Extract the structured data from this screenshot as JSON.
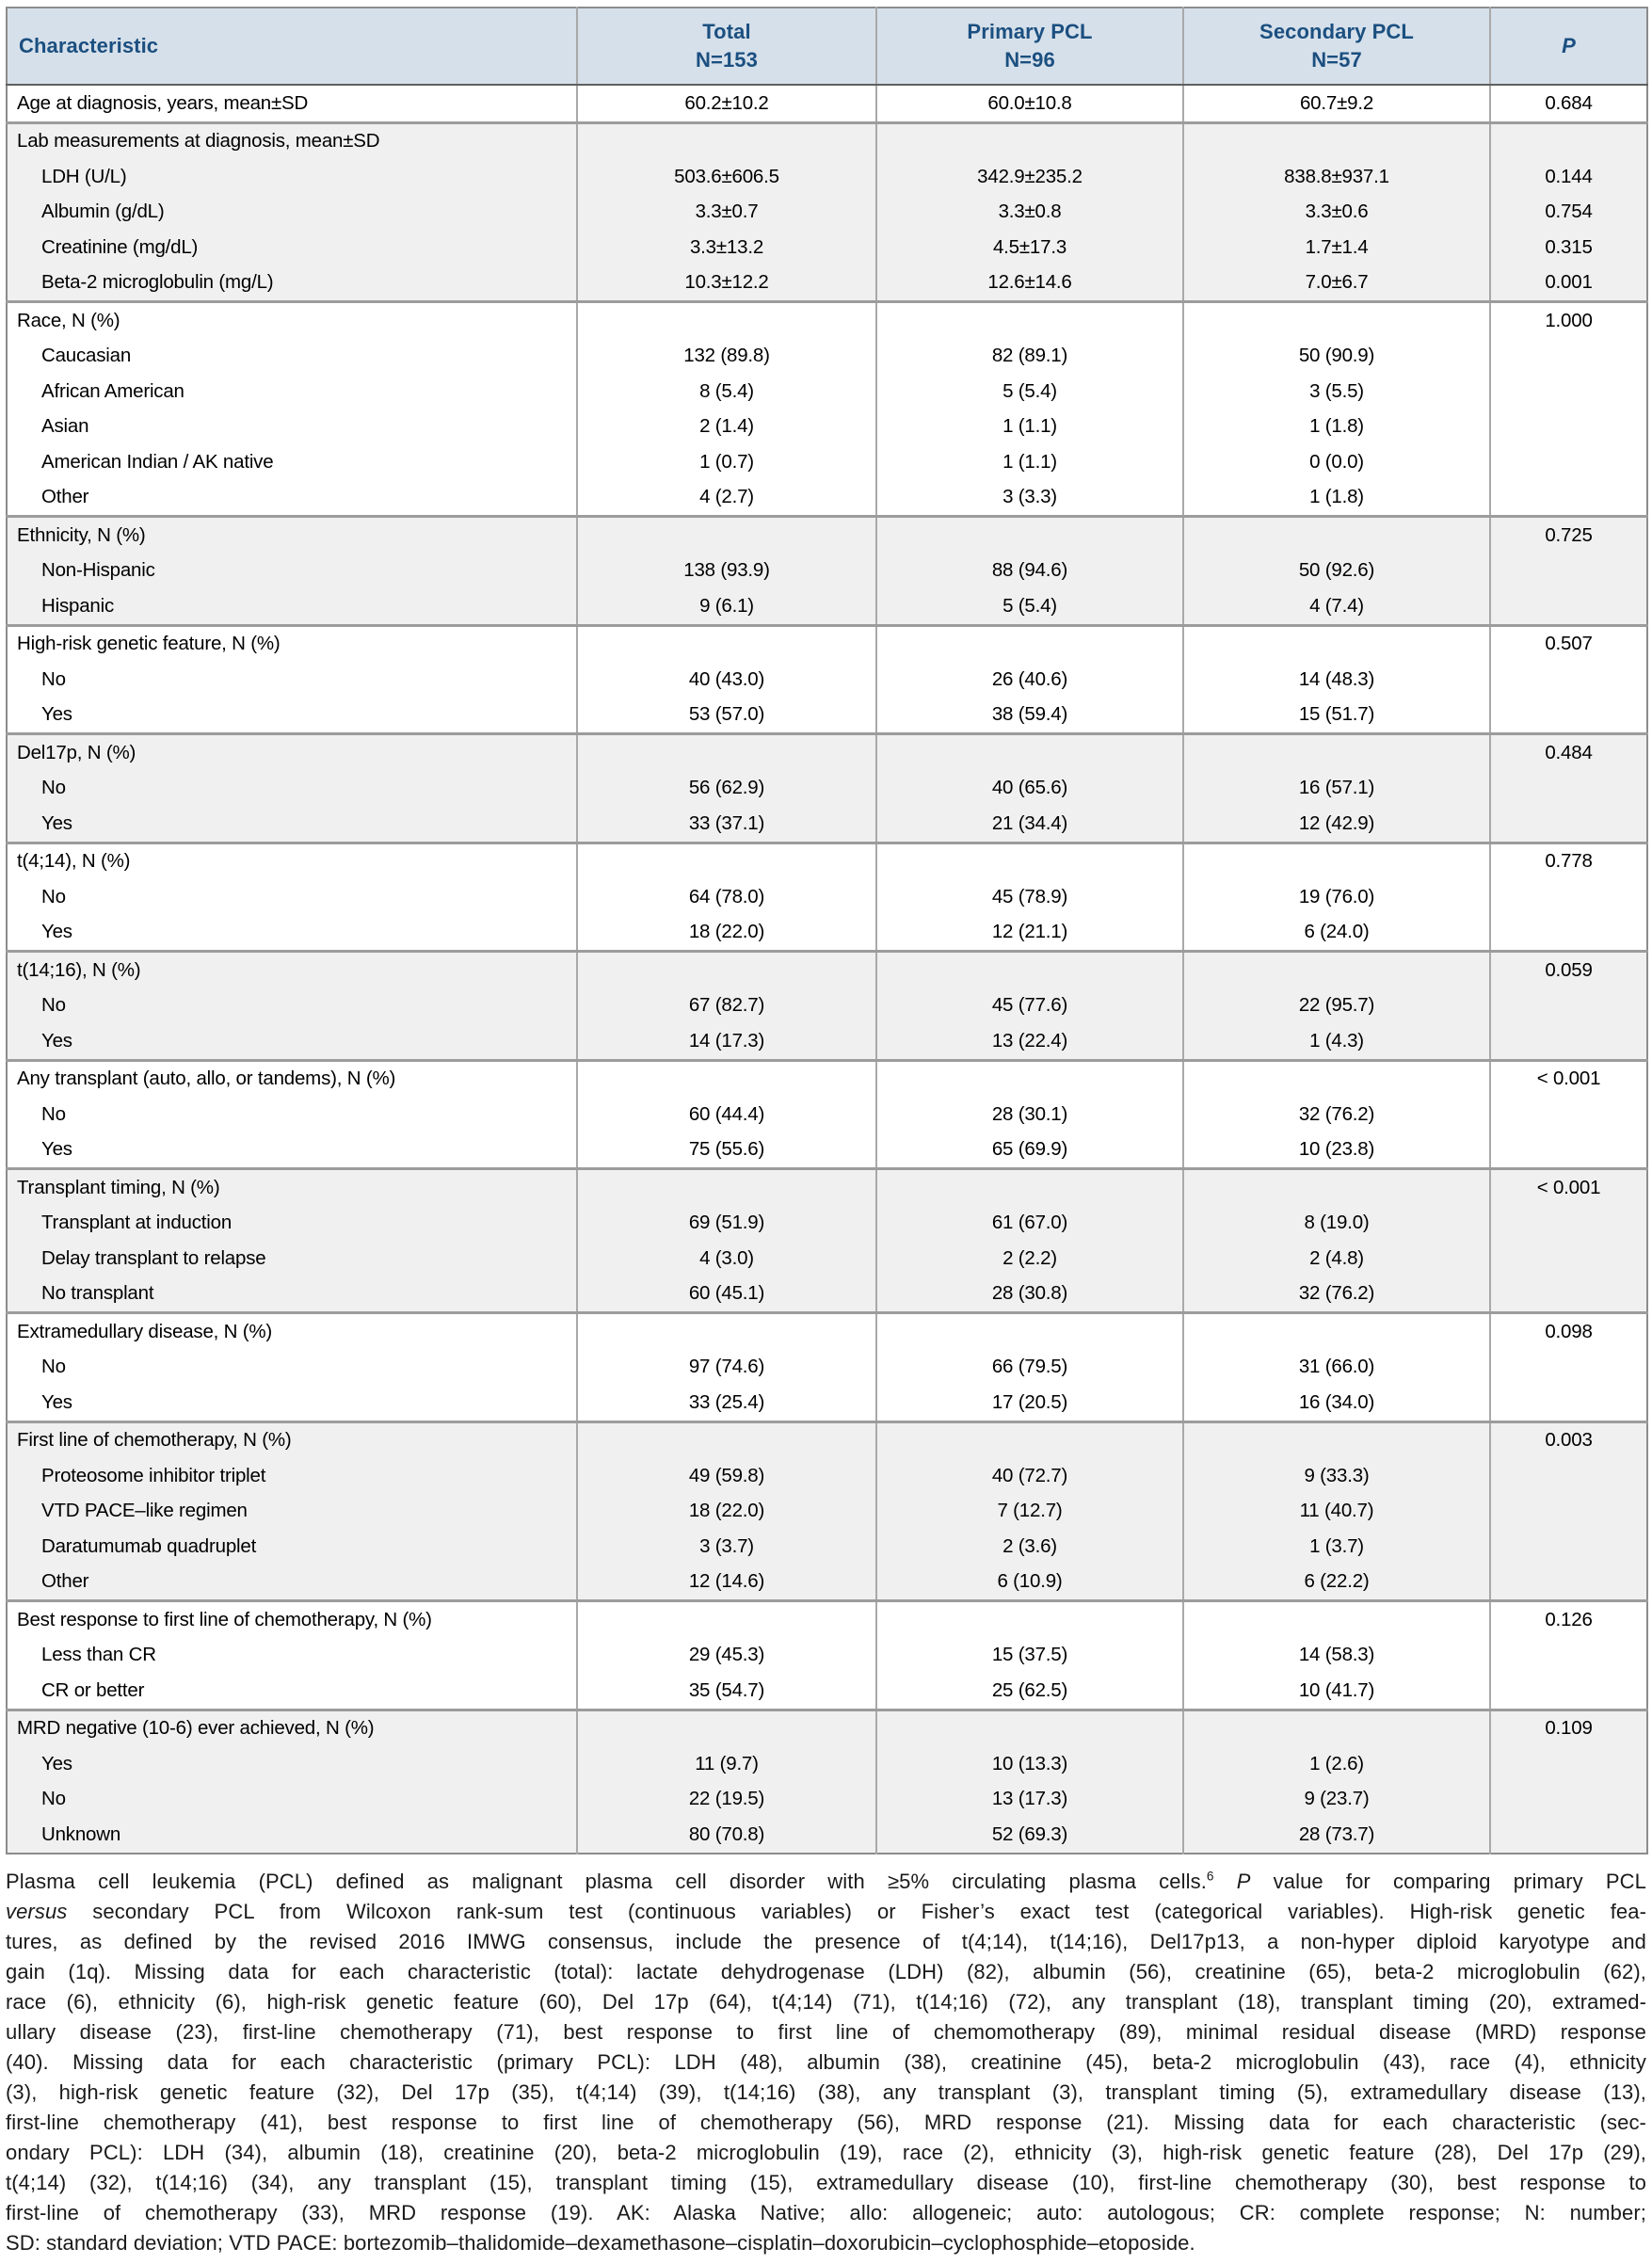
{
  "colors": {
    "header_bg": "#d6e0ea",
    "header_text": "#1b4f80",
    "alt_row_bg": "#f0f0f0",
    "grid_line": "#a9a9a9",
    "section_divider": "#9c9c9c",
    "outer_border": "#8c8c8c"
  },
  "table": {
    "header": {
      "characteristic": "Characteristic",
      "groups": [
        {
          "line1": "Total",
          "line2": "N=153"
        },
        {
          "line1": "Primary PCL",
          "line2": "N=96"
        },
        {
          "line1": "Secondary PCL",
          "line2": "N=57"
        }
      ],
      "p": "P"
    },
    "sections": [
      {
        "shade": "white",
        "rows": [
          {
            "label": "Age at diagnosis, years, mean±SD",
            "indent": false,
            "values": [
              "60.2±10.2",
              "60.0±10.8",
              "60.7±9.2"
            ],
            "p": "0.684"
          }
        ]
      },
      {
        "shade": "gray",
        "rows": [
          {
            "label": "Lab measurements at diagnosis, mean±SD",
            "indent": false,
            "values": [
              "",
              "",
              ""
            ],
            "p": ""
          },
          {
            "label": "LDH (U/L)",
            "indent": true,
            "values": [
              "503.6±606.5",
              "342.9±235.2",
              "838.8±937.1"
            ],
            "p": "0.144"
          },
          {
            "label": "Albumin (g/dL)",
            "indent": true,
            "values": [
              "3.3±0.7",
              "3.3±0.8",
              "3.3±0.6"
            ],
            "p": "0.754"
          },
          {
            "label": "Creatinine (mg/dL)",
            "indent": true,
            "values": [
              "3.3±13.2",
              "4.5±17.3",
              "1.7±1.4"
            ],
            "p": "0.315"
          },
          {
            "label": "Beta-2 microglobulin (mg/L)",
            "indent": true,
            "values": [
              "10.3±12.2",
              "12.6±14.6",
              "7.0±6.7"
            ],
            "p": "0.001"
          }
        ]
      },
      {
        "shade": "white",
        "rows": [
          {
            "label": "Race, N (%)",
            "indent": false,
            "values": [
              "",
              "",
              ""
            ],
            "p": "1.000"
          },
          {
            "label": "Caucasian",
            "indent": true,
            "values": [
              "132 (89.8)",
              "82 (89.1)",
              "50 (90.9)"
            ],
            "p": ""
          },
          {
            "label": "African American",
            "indent": true,
            "values": [
              "8 (5.4)",
              "5 (5.4)",
              "3 (5.5)"
            ],
            "p": ""
          },
          {
            "label": "Asian",
            "indent": true,
            "values": [
              "2 (1.4)",
              "1 (1.1)",
              "1 (1.8)"
            ],
            "p": ""
          },
          {
            "label": "American Indian / AK native",
            "indent": true,
            "values": [
              "1 (0.7)",
              "1 (1.1)",
              "0 (0.0)"
            ],
            "p": ""
          },
          {
            "label": "Other",
            "indent": true,
            "values": [
              "4 (2.7)",
              "3 (3.3)",
              "1 (1.8)"
            ],
            "p": ""
          }
        ]
      },
      {
        "shade": "gray",
        "rows": [
          {
            "label": "Ethnicity, N (%)",
            "indent": false,
            "values": [
              "",
              "",
              ""
            ],
            "p": "0.725"
          },
          {
            "label": "Non-Hispanic",
            "indent": true,
            "values": [
              "138 (93.9)",
              "88 (94.6)",
              "50 (92.6)"
            ],
            "p": ""
          },
          {
            "label": "Hispanic",
            "indent": true,
            "values": [
              "9 (6.1)",
              "5 (5.4)",
              "4 (7.4)"
            ],
            "p": ""
          }
        ]
      },
      {
        "shade": "white",
        "rows": [
          {
            "label": "High-risk genetic feature, N (%)",
            "indent": false,
            "values": [
              "",
              "",
              ""
            ],
            "p": "0.507"
          },
          {
            "label": "No",
            "indent": true,
            "values": [
              "40 (43.0)",
              "26 (40.6)",
              "14 (48.3)"
            ],
            "p": ""
          },
          {
            "label": "Yes",
            "indent": true,
            "values": [
              "53 (57.0)",
              "38 (59.4)",
              "15 (51.7)"
            ],
            "p": ""
          }
        ]
      },
      {
        "shade": "gray",
        "rows": [
          {
            "label": "Del17p, N (%)",
            "indent": false,
            "values": [
              "",
              "",
              ""
            ],
            "p": "0.484"
          },
          {
            "label": "No",
            "indent": true,
            "values": [
              "56 (62.9)",
              "40 (65.6)",
              "16 (57.1)"
            ],
            "p": ""
          },
          {
            "label": "Yes",
            "indent": true,
            "values": [
              "33 (37.1)",
              "21 (34.4)",
              "12 (42.9)"
            ],
            "p": ""
          }
        ]
      },
      {
        "shade": "white",
        "rows": [
          {
            "label": "t(4;14), N (%)",
            "indent": false,
            "values": [
              "",
              "",
              ""
            ],
            "p": "0.778"
          },
          {
            "label": "No",
            "indent": true,
            "values": [
              "64 (78.0)",
              "45 (78.9)",
              "19 (76.0)"
            ],
            "p": ""
          },
          {
            "label": "Yes",
            "indent": true,
            "values": [
              "18 (22.0)",
              "12 (21.1)",
              "6 (24.0)"
            ],
            "p": ""
          }
        ]
      },
      {
        "shade": "gray",
        "rows": [
          {
            "label": "t(14;16), N (%)",
            "indent": false,
            "values": [
              "",
              "",
              ""
            ],
            "p": "0.059"
          },
          {
            "label": "No",
            "indent": true,
            "values": [
              "67 (82.7)",
              "45 (77.6)",
              "22 (95.7)"
            ],
            "p": ""
          },
          {
            "label": "Yes",
            "indent": true,
            "values": [
              "14 (17.3)",
              "13 (22.4)",
              "1 (4.3)"
            ],
            "p": ""
          }
        ]
      },
      {
        "shade": "white",
        "rows": [
          {
            "label": "Any transplant (auto, allo, or tandems), N (%)",
            "indent": false,
            "values": [
              "",
              "",
              ""
            ],
            "p": "< 0.001"
          },
          {
            "label": "No",
            "indent": true,
            "values": [
              "60 (44.4)",
              "28 (30.1)",
              "32 (76.2)"
            ],
            "p": ""
          },
          {
            "label": "Yes",
            "indent": true,
            "values": [
              "75 (55.6)",
              "65 (69.9)",
              "10 (23.8)"
            ],
            "p": ""
          }
        ]
      },
      {
        "shade": "gray",
        "rows": [
          {
            "label": "Transplant timing, N (%)",
            "indent": false,
            "values": [
              "",
              "",
              ""
            ],
            "p": "< 0.001"
          },
          {
            "label": "Transplant at induction",
            "indent": true,
            "values": [
              "69 (51.9)",
              "61 (67.0)",
              "8 (19.0)"
            ],
            "p": ""
          },
          {
            "label": "Delay transplant to relapse",
            "indent": true,
            "values": [
              "4 (3.0)",
              "2 (2.2)",
              "2 (4.8)"
            ],
            "p": ""
          },
          {
            "label": "No transplant",
            "indent": true,
            "values": [
              "60 (45.1)",
              "28 (30.8)",
              "32 (76.2)"
            ],
            "p": ""
          }
        ]
      },
      {
        "shade": "white",
        "rows": [
          {
            "label": "Extramedullary disease, N (%)",
            "indent": false,
            "values": [
              "",
              "",
              ""
            ],
            "p": "0.098"
          },
          {
            "label": "No",
            "indent": true,
            "values": [
              "97 (74.6)",
              "66 (79.5)",
              "31 (66.0)"
            ],
            "p": ""
          },
          {
            "label": "Yes",
            "indent": true,
            "values": [
              "33 (25.4)",
              "17 (20.5)",
              "16 (34.0)"
            ],
            "p": ""
          }
        ]
      },
      {
        "shade": "gray",
        "rows": [
          {
            "label": "First line of chemotherapy, N (%)",
            "indent": false,
            "values": [
              "",
              "",
              ""
            ],
            "p": "0.003"
          },
          {
            "label": "Proteosome inhibitor triplet",
            "indent": true,
            "values": [
              "49 (59.8)",
              "40 (72.7)",
              "9 (33.3)"
            ],
            "p": ""
          },
          {
            "label": "VTD PACE–like regimen",
            "indent": true,
            "values": [
              "18 (22.0)",
              "7 (12.7)",
              "11 (40.7)"
            ],
            "p": ""
          },
          {
            "label": "Daratumumab quadruplet",
            "indent": true,
            "values": [
              "3 (3.7)",
              "2 (3.6)",
              "1 (3.7)"
            ],
            "p": ""
          },
          {
            "label": "Other",
            "indent": true,
            "values": [
              "12 (14.6)",
              "6 (10.9)",
              "6 (22.2)"
            ],
            "p": ""
          }
        ]
      },
      {
        "shade": "white",
        "rows": [
          {
            "label": "Best response to first line of chemotherapy, N (%)",
            "indent": false,
            "values": [
              "",
              "",
              ""
            ],
            "p": "0.126"
          },
          {
            "label": "Less than CR",
            "indent": true,
            "values": [
              "29 (45.3)",
              "15 (37.5)",
              "14 (58.3)"
            ],
            "p": ""
          },
          {
            "label": "CR or better",
            "indent": true,
            "values": [
              "35 (54.7)",
              "25 (62.5)",
              "10 (41.7)"
            ],
            "p": ""
          }
        ]
      },
      {
        "shade": "gray",
        "rows": [
          {
            "label": "MRD negative (10-6) ever achieved, N (%)",
            "indent": false,
            "values": [
              "",
              "",
              ""
            ],
            "p": "0.109"
          },
          {
            "label": "Yes",
            "indent": true,
            "values": [
              "11 (9.7)",
              "10 (13.3)",
              "1 (2.6)"
            ],
            "p": ""
          },
          {
            "label": "No",
            "indent": true,
            "values": [
              "22 (19.5)",
              "13 (17.3)",
              "9 (23.7)"
            ],
            "p": ""
          },
          {
            "label": "Unknown",
            "indent": true,
            "values": [
              "80 (70.8)",
              "52 (69.3)",
              "28 (73.7)"
            ],
            "p": ""
          }
        ]
      }
    ]
  },
  "footnote": {
    "lines": [
      [
        {
          "t": "Plasma cell leukemia (PCL) defined as malignant plasma cell disorder with ≥5% circulating plasma cells."
        },
        {
          "t": "6",
          "sup": true
        },
        {
          "t": " "
        },
        {
          "t": "P",
          "i": true
        },
        {
          "t": " value for comparing primary PCL"
        }
      ],
      [
        {
          "t": "versus",
          "i": true
        },
        {
          "t": " secondary PCL from Wilcoxon rank-sum test (continuous variables) or Fisher’s exact test (categorical variables). High-risk genetic fea-"
        }
      ],
      [
        {
          "t": "tures, as defined by the revised 2016 IMWG consensus, include the presence of t(4;14), t(14;16), Del17p13, a non-hyper diploid karyotype and"
        }
      ],
      [
        {
          "t": "gain (1q). Missing data for each characteristic (total): lactate dehydrogenase (LDH) (82), albumin (56), creatinine (65), beta-2 microglobulin (62),"
        }
      ],
      [
        {
          "t": "race (6), ethnicity (6), high-risk genetic feature (60), Del 17p (64), t(4;14) (71), t(14;16) (72), any transplant (18), transplant timing (20), extramed-"
        }
      ],
      [
        {
          "t": "ullary disease (23), first-line chemotherapy (71), best response to first line of chemomotherapy (89), minimal residual disease (MRD) response"
        }
      ],
      [
        {
          "t": "(40). Missing data for each characteristic (primary PCL): LDH (48), albumin (38), creatinine (45), beta-2 microglobulin (43), race (4), ethnicity"
        }
      ],
      [
        {
          "t": "(3), high-risk genetic feature (32), Del 17p (35), t(4;14) (39), t(14;16) (38), any transplant (3), transplant timing (5), extramedullary disease (13),"
        }
      ],
      [
        {
          "t": "first-line chemotherapy (41), best response to first line of chemotherapy (56), MRD response (21). Missing data for each characteristic (sec-"
        }
      ],
      [
        {
          "t": "ondary PCL): LDH (34), albumin (18), creatinine (20), beta-2 microglobulin (19), race (2), ethnicity (3), high-risk genetic feature (28), Del 17p (29),"
        }
      ],
      [
        {
          "t": "t(4;14) (32), t(14;16) (34), any transplant (15), transplant timing (15), extramedullary disease (10), first-line chemotherapy (30), best response to"
        }
      ],
      [
        {
          "t": "first-line of chemotherapy (33), MRD response (19). AK: Alaska Native; allo: allogeneic; auto: autologous; CR: complete response; N: number;"
        }
      ],
      [
        {
          "t": "SD: standard deviation; VTD PACE: bortezomib–thalidomide–dexamethasone–cisplatin–doxorubicin–cyclophosphide–etoposide."
        }
      ]
    ]
  }
}
